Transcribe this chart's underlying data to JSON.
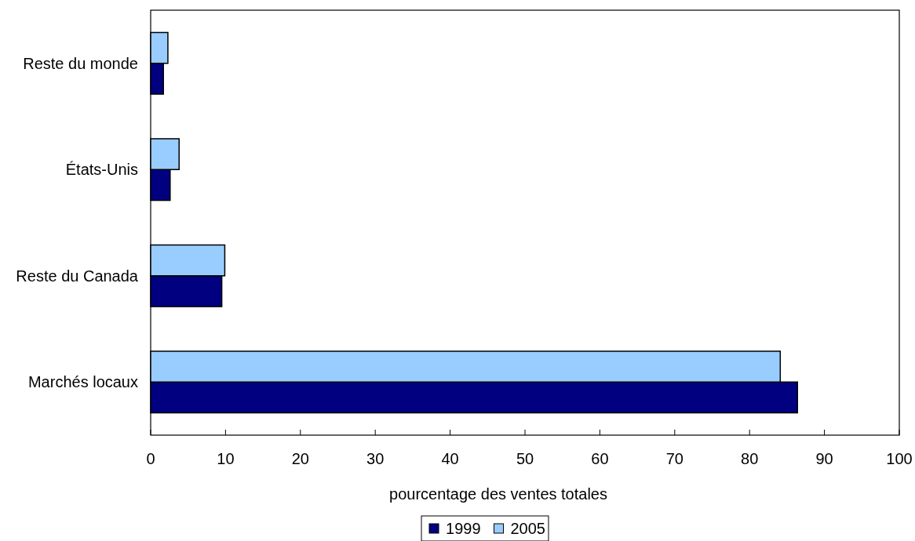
{
  "chart_data": {
    "type": "bar",
    "orientation": "horizontal",
    "xlabel": "pourcentage des ventes totales",
    "categories": [
      "Reste du monde",
      "États-Unis",
      "Reste du Canada",
      "Marchés locaux"
    ],
    "series": [
      {
        "name": "1999",
        "color": "#000080",
        "values": [
          1.7,
          2.6,
          9.5,
          86.4
        ]
      },
      {
        "name": "2005",
        "color": "#99ccff",
        "values": [
          2.3,
          3.8,
          9.9,
          84.1
        ]
      }
    ],
    "xlim": [
      0,
      100
    ],
    "xticks": [
      0,
      10,
      20,
      30,
      40,
      50,
      60,
      70,
      80,
      90,
      100
    ],
    "legend": "bottom"
  }
}
